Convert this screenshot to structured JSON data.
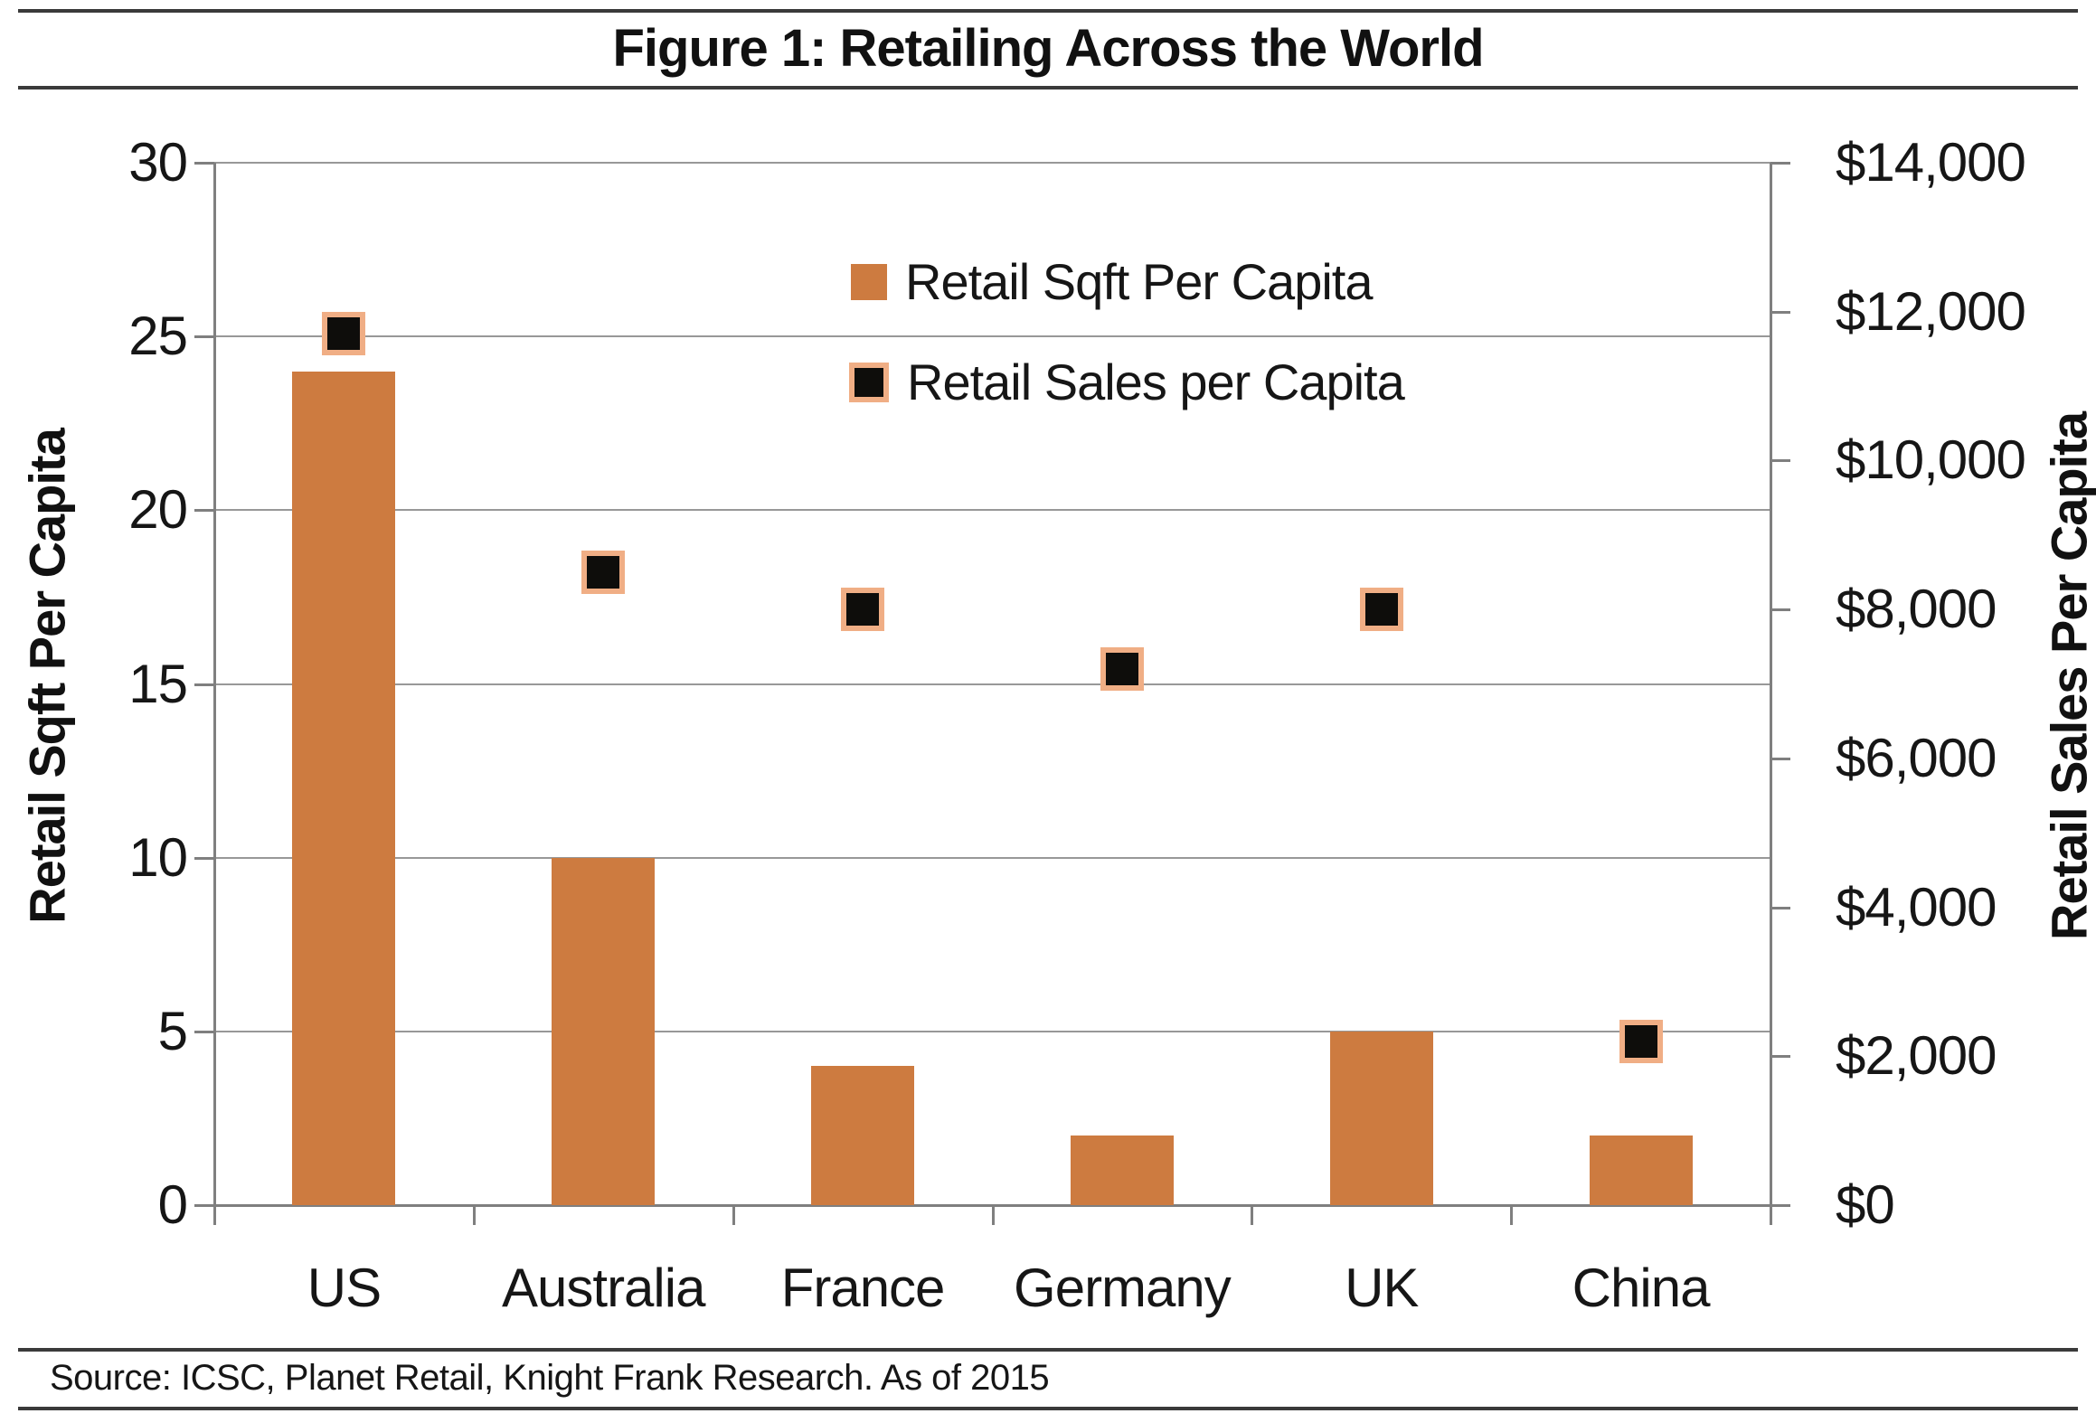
{
  "figure": {
    "title": "Figure 1: Retailing Across the World",
    "source": "Source: ICSC, Planet Retail, Knight Frank Research. As of 2015"
  },
  "chart_data": {
    "type": "bar",
    "subtype": "bar-with-square-scatter-overlay",
    "categories": [
      "US",
      "Australia",
      "France",
      "Germany",
      "UK",
      "China"
    ],
    "series": [
      {
        "name": "Retail Sqft Per Capita",
        "render": "bar",
        "axis": "left",
        "values": [
          24,
          10,
          4,
          2,
          5,
          2
        ]
      },
      {
        "name": "Retail Sales per Capita",
        "render": "square-marker",
        "axis": "right",
        "values": [
          11700,
          8500,
          8000,
          7200,
          8000,
          2200
        ]
      }
    ],
    "left_axis": {
      "title": "Retail Sqft Per Capita",
      "min": 0,
      "max": 30,
      "ticks": [
        0,
        5,
        10,
        15,
        20,
        25,
        30
      ]
    },
    "right_axis": {
      "title": "Retail Sales Per Capita",
      "min": 0,
      "max": 14000,
      "tick_labels": [
        "$0",
        "$2,000",
        "$4,000",
        "$6,000",
        "$8,000",
        "$10,000",
        "$12,000",
        "$14,000"
      ]
    },
    "legend": {
      "position": "inside-top-center",
      "entries": [
        "Retail Sqft Per Capita",
        "Retail Sales per Capita"
      ]
    },
    "grid": true,
    "colors": {
      "bar_fill": "#CD7B40",
      "marker_fill": "#0E0D0B",
      "marker_border": "#F0AE85",
      "gridline": "#989898",
      "axis_line": "#7F7F7F",
      "text": "#161616"
    }
  }
}
